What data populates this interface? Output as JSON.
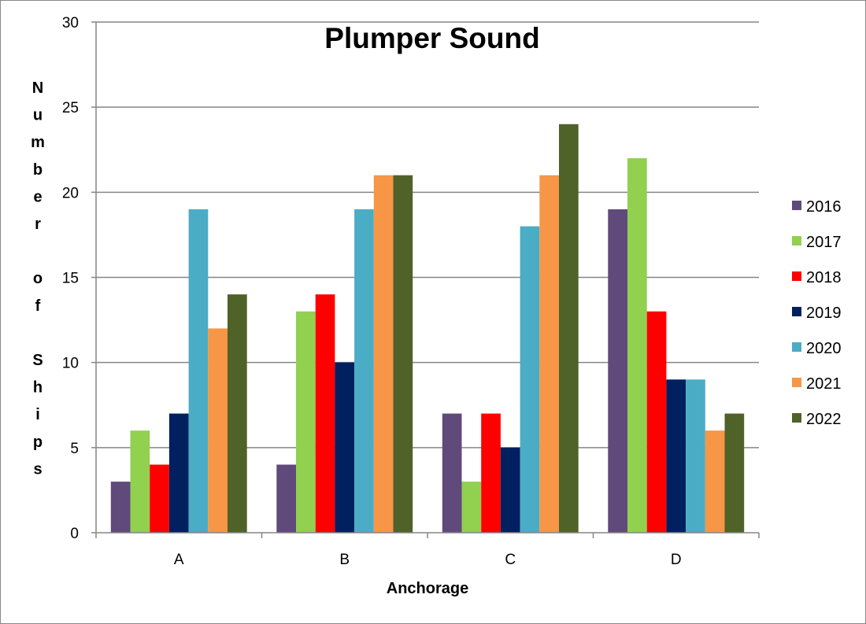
{
  "chart_data": {
    "type": "bar",
    "title": "Plumper Sound",
    "xlabel": "Anchorage",
    "ylabel": "Number of Ships",
    "categories": [
      "A",
      "B",
      "C",
      "D"
    ],
    "ylim": [
      0,
      30
    ],
    "yticks": [
      0,
      5,
      10,
      15,
      20,
      25,
      30
    ],
    "grid": true,
    "legend_position": "right",
    "series": [
      {
        "name": "2016",
        "color": "#604A7B",
        "values": [
          3,
          4,
          7,
          19
        ]
      },
      {
        "name": "2017",
        "color": "#92D050",
        "values": [
          6,
          13,
          3,
          22
        ]
      },
      {
        "name": "2018",
        "color": "#FF0000",
        "values": [
          4,
          14,
          7,
          13
        ]
      },
      {
        "name": "2019",
        "color": "#002060",
        "values": [
          7,
          10,
          5,
          9
        ]
      },
      {
        "name": "2020",
        "color": "#4BACC6",
        "values": [
          19,
          19,
          18,
          9
        ]
      },
      {
        "name": "2021",
        "color": "#F79646",
        "values": [
          12,
          21,
          21,
          6
        ]
      },
      {
        "name": "2022",
        "color": "#4F6228",
        "values": [
          14,
          21,
          24,
          7
        ]
      }
    ]
  }
}
